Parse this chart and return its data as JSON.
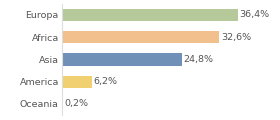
{
  "categories": [
    "Europa",
    "Africa",
    "Asia",
    "America",
    "Oceania"
  ],
  "values": [
    36.4,
    32.6,
    24.8,
    6.2,
    0.2
  ],
  "labels": [
    "36,4%",
    "32,6%",
    "24,8%",
    "6,2%",
    "0,2%"
  ],
  "colors": [
    "#b5c99a",
    "#f2c08c",
    "#7090b8",
    "#f0d070",
    "#f2f2f2"
  ],
  "background_color": "#ffffff",
  "xlim": [
    0,
    44
  ],
  "label_fontsize": 6.8,
  "tick_fontsize": 6.8,
  "grid_color": "#dddddd",
  "text_color": "#555555"
}
